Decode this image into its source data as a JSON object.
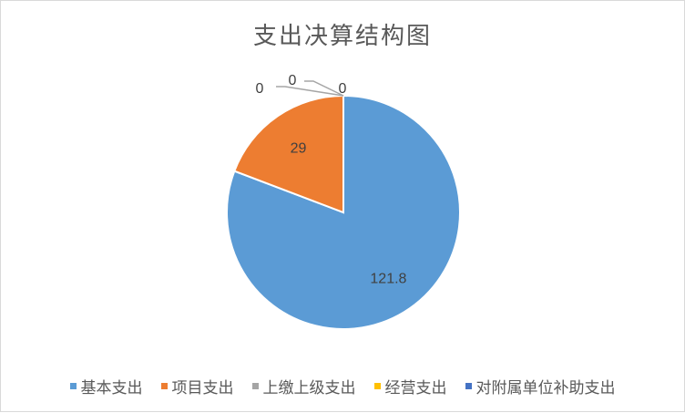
{
  "chart_data": {
    "type": "pie",
    "title": "支出决算结构图",
    "categories": [
      "基本支出",
      "项目支出",
      "上缴上级支出",
      "经营支出",
      "对附属单位补助支出"
    ],
    "values": [
      121.8,
      29,
      0,
      0,
      0
    ],
    "data_labels": [
      "121.8",
      "29",
      "0",
      "0",
      "0"
    ],
    "colors": [
      "#5b9bd5",
      "#ed7d31",
      "#a5a5a5",
      "#ffc000",
      "#4472c4"
    ],
    "start_angle_deg": 0,
    "direction": "clockwise",
    "legend_position": "bottom"
  }
}
